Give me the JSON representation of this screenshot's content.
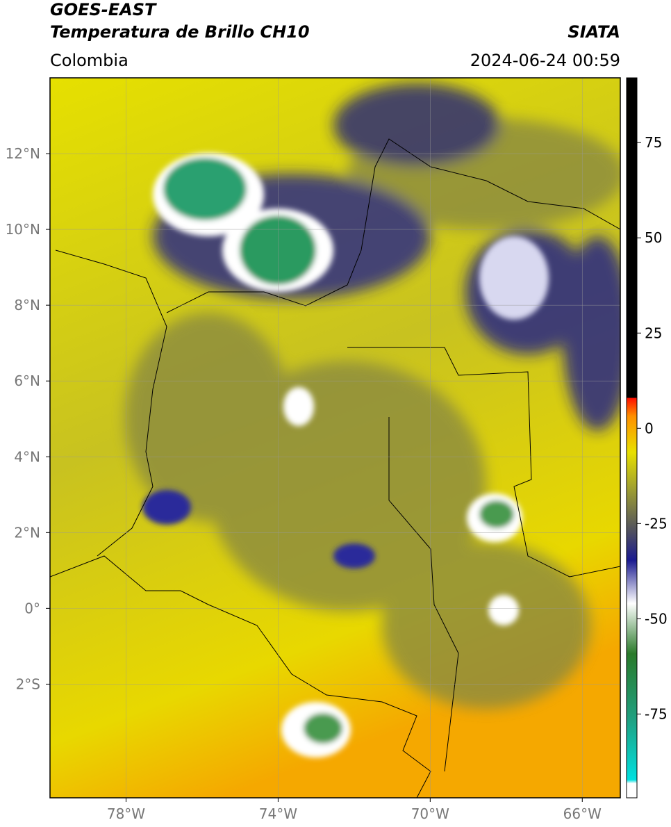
{
  "header": {
    "title_line1": "GOES-EAST",
    "title_line2": "Temperatura de Brillo CH10",
    "region": "Colombia",
    "source": "SIATA",
    "timestamp": "2024-06-24 00:59"
  },
  "map": {
    "xlim": [
      -80,
      -65
    ],
    "ylim": [
      -5,
      14
    ],
    "grid": true,
    "xticks": [
      {
        "value": -78,
        "label": "78°W"
      },
      {
        "value": -74,
        "label": "74°W"
      },
      {
        "value": -70,
        "label": "70°W"
      },
      {
        "value": -66,
        "label": "66°W"
      }
    ],
    "yticks": [
      {
        "value": 12,
        "label": "12°N"
      },
      {
        "value": 10,
        "label": "10°N"
      },
      {
        "value": 8,
        "label": "8°N"
      },
      {
        "value": 6,
        "label": "6°N"
      },
      {
        "value": 4,
        "label": "4°N"
      },
      {
        "value": 2,
        "label": "2°N"
      },
      {
        "value": 0,
        "label": "0°"
      },
      {
        "value": -2,
        "label": "2°S"
      }
    ]
  },
  "colorbar": {
    "lim": [
      -97,
      92
    ],
    "ticks": [
      75,
      50,
      25,
      0,
      -25,
      -50,
      -75
    ]
  }
}
